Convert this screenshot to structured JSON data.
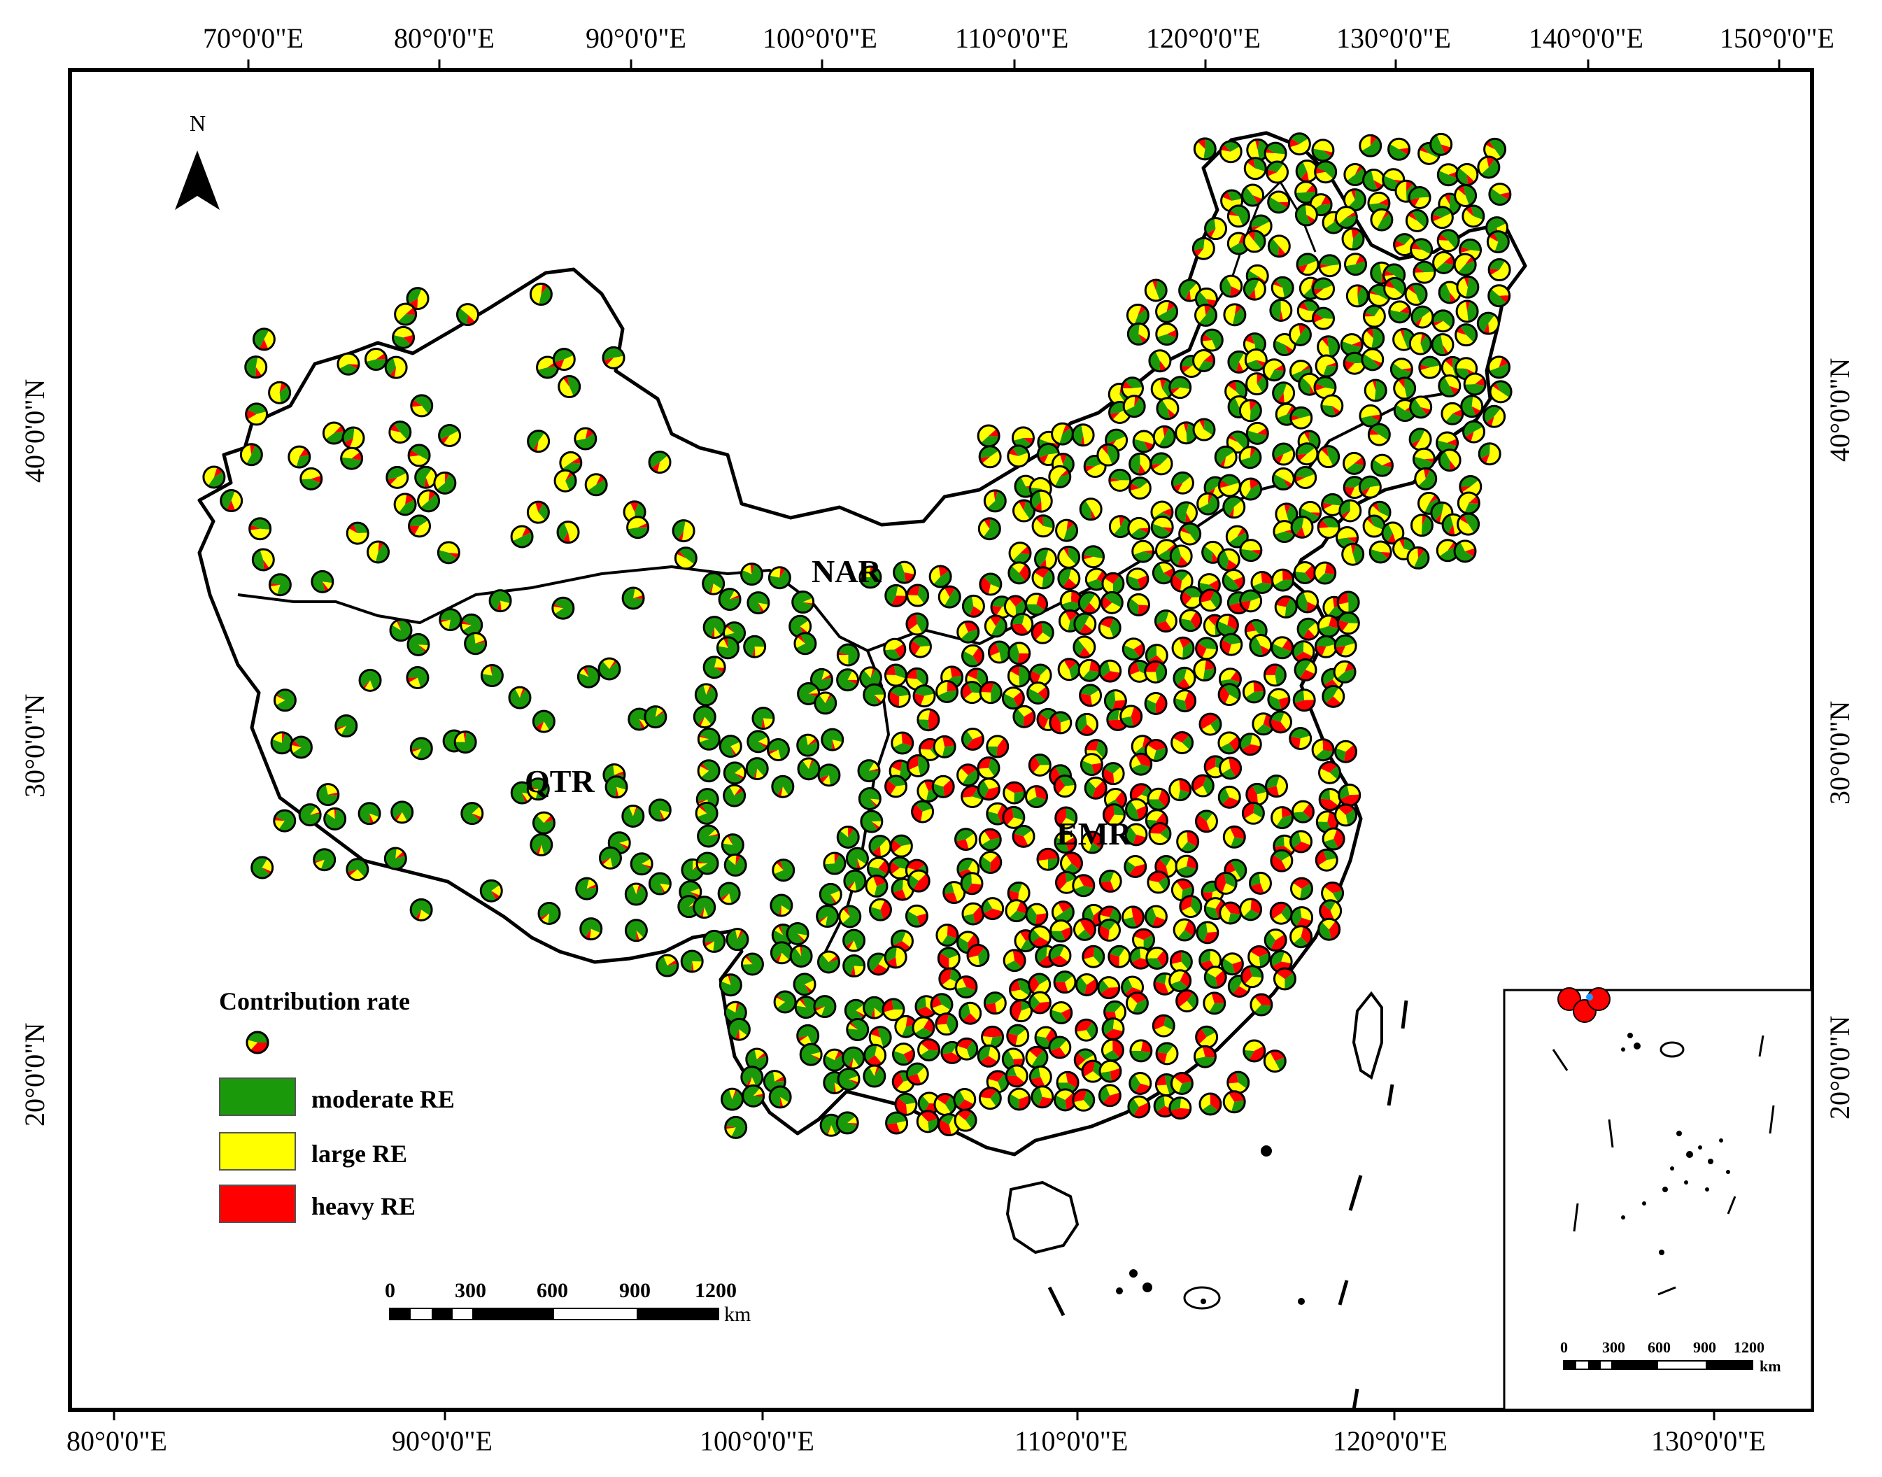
{
  "map": {
    "north_label": "N",
    "regions": [
      {
        "label": "NAR"
      },
      {
        "label": "QTR"
      },
      {
        "label": "EMR"
      }
    ],
    "top_axis": [
      "70°0'0\"E",
      "80°0'0\"E",
      "90°0'0\"E",
      "100°0'0\"E",
      "110°0'0\"E",
      "120°0'0\"E",
      "130°0'0\"E",
      "140°0'0\"E",
      "150°0'0\"E"
    ],
    "bottom_axis": [
      "80°0'0\"E",
      "90°0'0\"E",
      "100°0'0\"E",
      "110°0'0\"E",
      "120°0'0\"E",
      "130°0'0\"E"
    ],
    "left_axis": [
      "40°0'0\"N",
      "30°0'0\"N",
      "20°0'0\"N"
    ],
    "right_axis": [
      "40°0'0\"N",
      "30°0'0\"N",
      "20°0'0\"N"
    ],
    "legend": {
      "title": "Contribution rate",
      "items": [
        {
          "label": "moderate RE",
          "color": "#1a9a0a"
        },
        {
          "label": "large RE",
          "color": "#ffff00"
        },
        {
          "label": "heavy RE",
          "color": "#ff0000"
        }
      ]
    },
    "scale_bar": {
      "ticks": [
        "0",
        "300",
        "600",
        "900",
        "1200"
      ],
      "unit": "km"
    },
    "inset_scale_bar": {
      "ticks": [
        "0",
        "300",
        "600",
        "900",
        "1200"
      ],
      "unit": "km"
    },
    "colors": {
      "moderate": "#1a9a0a",
      "large": "#ffff00",
      "heavy": "#ff0000",
      "boundary": "#000000"
    }
  }
}
